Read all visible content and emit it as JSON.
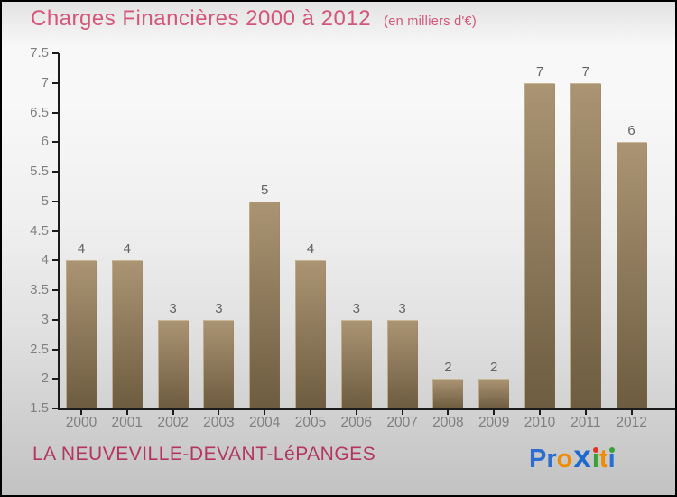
{
  "header": {
    "title": "Charges Financières 2000 à 2012",
    "subtitle": "(en milliers d'€)"
  },
  "chart_data": {
    "type": "bar",
    "title": "Charges Financières 2000 à 2012",
    "subtitle": "(en milliers d'€)",
    "categories": [
      "2000",
      "2001",
      "2002",
      "2003",
      "2004",
      "2005",
      "2006",
      "2007",
      "2008",
      "2009",
      "2010",
      "2011",
      "2012"
    ],
    "values": [
      4,
      4,
      3,
      3,
      5,
      4,
      3,
      3,
      2,
      2,
      7,
      7,
      6
    ],
    "ylabel": "",
    "xlabel": "",
    "ylim": [
      1.5,
      7.5
    ],
    "ytick_step": 0.5,
    "grid": false,
    "legend": false,
    "bar_color_top": "#aa9473",
    "bar_color_bottom": "#6e5c40"
  },
  "footer": {
    "location": "LA NEUVEVILLE-DEVANT-LéPANGES",
    "logo_text": "Proxiti",
    "logo_letters": [
      {
        "char": "P",
        "color": "#2a6ed2"
      },
      {
        "char": "r",
        "color": "#2a6ed2"
      },
      {
        "char": "o",
        "color": "#ef8b00"
      },
      {
        "char": "x",
        "color": "#1f68cc",
        "big": true
      },
      {
        "char": "ı",
        "color": "#38a23a",
        "dot": "#e23222"
      },
      {
        "char": "t",
        "color": "#ef8b00"
      },
      {
        "char": "ı",
        "color": "#2a6ed2",
        "dot": "#38a23a"
      }
    ]
  },
  "colors": {
    "title_text": "#d4567a",
    "footer_text": "#b43560",
    "axis_line": "#1b1b1b",
    "tick_label": "#7f7f7f",
    "value_label": "#636363"
  }
}
